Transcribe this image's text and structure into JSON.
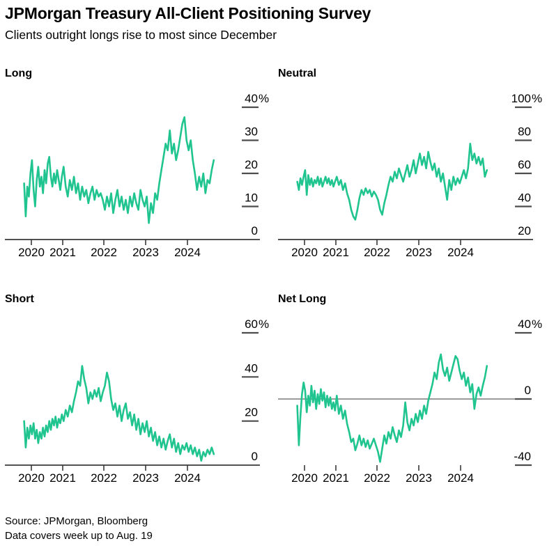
{
  "header": {
    "title": "JPMorgan Treasury All-Client Positioning Survey",
    "subtitle": "Clients outright longs rise to most since December"
  },
  "footer": {
    "source": "Source: JPMorgan, Bloomberg",
    "note": "Data covers week up to Aug. 19"
  },
  "colors": {
    "line": "#1fc48e",
    "tick_dash": "#4d4d4d",
    "axis_line": "#3a3a3a",
    "zero_line": "#7a7a7a",
    "text": "#000000"
  },
  "chart_data": [
    {
      "type": "line",
      "title": "Long",
      "x_start": 2019.77,
      "x_end": 2024.63,
      "xticks": [
        "2020",
        "2021",
        "2022",
        "2023",
        "2024"
      ],
      "ylim": [
        0,
        40
      ],
      "axis": "bottom",
      "grid": "off",
      "legend": "none",
      "yticks": [
        {
          "v": 40,
          "label": "40",
          "suffix": "%",
          "dash": true
        },
        {
          "v": 30,
          "label": "30",
          "suffix": "",
          "dash": true
        },
        {
          "v": 20,
          "label": "20",
          "suffix": "",
          "dash": true
        },
        {
          "v": 10,
          "label": "10",
          "suffix": "",
          "dash": true
        },
        {
          "v": 0,
          "label": "0",
          "suffix": "",
          "dash": false
        }
      ],
      "values": [
        17,
        7,
        16,
        13,
        20,
        24,
        15,
        10,
        18,
        22,
        16,
        19,
        14,
        21,
        17,
        23,
        25,
        19,
        16,
        20,
        17,
        21,
        18,
        15,
        19,
        22,
        16,
        13,
        18,
        15,
        19,
        14,
        17,
        12,
        16,
        13,
        15,
        11,
        14,
        16,
        12,
        15,
        13,
        14,
        12,
        9,
        13,
        10,
        14,
        8,
        12,
        15,
        10,
        13,
        9,
        12,
        8,
        13,
        10,
        14,
        11,
        9,
        15,
        12,
        10,
        13,
        5,
        11,
        8,
        14,
        12,
        17,
        21,
        25,
        29,
        27,
        33,
        26,
        29,
        24,
        27,
        31,
        35,
        37,
        30,
        27,
        30,
        24,
        20,
        15,
        19,
        16,
        20,
        14,
        18,
        17,
        21,
        24
      ]
    },
    {
      "type": "line",
      "title": "Neutral",
      "x_start": 2019.77,
      "x_end": 2024.63,
      "xticks": [
        "2020",
        "2021",
        "2022",
        "2023",
        "2024"
      ],
      "ylim": [
        20,
        100
      ],
      "axis": "bottom",
      "grid": "off",
      "legend": "none",
      "yticks": [
        {
          "v": 100,
          "label": "100",
          "suffix": "%",
          "dash": true
        },
        {
          "v": 80,
          "label": "80",
          "suffix": "",
          "dash": true
        },
        {
          "v": 60,
          "label": "60",
          "suffix": "",
          "dash": true
        },
        {
          "v": 40,
          "label": "40",
          "suffix": "",
          "dash": true
        },
        {
          "v": 20,
          "label": "20",
          "suffix": "",
          "dash": false
        }
      ],
      "values": [
        55,
        50,
        57,
        53,
        58,
        62,
        47,
        59,
        53,
        57,
        52,
        56,
        54,
        58,
        53,
        57,
        52,
        55,
        58,
        54,
        57,
        53,
        56,
        52,
        55,
        58,
        53,
        56,
        50,
        54,
        48,
        44,
        38,
        34,
        32,
        38,
        45,
        50,
        47,
        51,
        48,
        50,
        46,
        49,
        47,
        44,
        38,
        35,
        42,
        47,
        53,
        58,
        55,
        61,
        57,
        63,
        59,
        55,
        60,
        65,
        58,
        62,
        68,
        60,
        66,
        72,
        65,
        70,
        63,
        73,
        67,
        62,
        66,
        58,
        63,
        55,
        60,
        52,
        44,
        56,
        50,
        58,
        53,
        57,
        54,
        58,
        62,
        57,
        63,
        78,
        68,
        72,
        66,
        70,
        65,
        69,
        58,
        62
      ]
    },
    {
      "type": "line",
      "title": "Short",
      "x_start": 2019.77,
      "x_end": 2024.63,
      "xticks": [
        "2020",
        "2021",
        "2022",
        "2023",
        "2024"
      ],
      "ylim": [
        0,
        60
      ],
      "axis": "bottom",
      "grid": "off",
      "legend": "none",
      "yticks": [
        {
          "v": 60,
          "label": "60",
          "suffix": "%",
          "dash": true
        },
        {
          "v": 40,
          "label": "40",
          "suffix": "",
          "dash": true
        },
        {
          "v": 20,
          "label": "20",
          "suffix": "",
          "dash": true
        },
        {
          "v": 0,
          "label": "0",
          "suffix": "",
          "dash": false
        }
      ],
      "values": [
        20,
        8,
        17,
        12,
        18,
        14,
        19,
        12,
        16,
        10,
        15,
        12,
        17,
        13,
        18,
        15,
        20,
        16,
        21,
        18,
        22,
        17,
        21,
        19,
        23,
        20,
        25,
        22,
        27,
        24,
        29,
        33,
        38,
        36,
        45,
        39,
        35,
        28,
        33,
        30,
        34,
        31,
        35,
        29,
        33,
        36,
        42,
        38,
        30,
        25,
        28,
        22,
        27,
        20,
        25,
        28,
        21,
        24,
        18,
        23,
        16,
        21,
        14,
        19,
        15,
        20,
        13,
        17,
        11,
        15,
        9,
        13,
        8,
        12,
        7,
        11,
        14,
        8,
        12,
        6,
        10,
        5,
        9,
        7,
        10,
        6,
        9,
        5,
        8,
        4,
        7,
        2,
        6,
        4,
        7,
        5,
        8,
        5
      ]
    },
    {
      "type": "line",
      "title": "Net Long",
      "x_start": 2019.77,
      "x_end": 2024.63,
      "xticks": [
        "2020",
        "2021",
        "2022",
        "2023",
        "2024"
      ],
      "ylim": [
        -40,
        40
      ],
      "axis": "zero",
      "zero_line_at": 0,
      "grid": "off",
      "legend": "none",
      "yticks": [
        {
          "v": 40,
          "label": "40",
          "suffix": "%",
          "dash": true
        },
        {
          "v": 0,
          "label": "0",
          "suffix": "",
          "dash": true
        },
        {
          "v": -40,
          "label": "-40",
          "suffix": "",
          "dash": true
        }
      ],
      "values": [
        -4,
        -28,
        -10,
        3,
        10,
        5,
        -8,
        2,
        -4,
        8,
        -2,
        5,
        -6,
        3,
        -3,
        6,
        -1,
        4,
        -5,
        2,
        -4,
        1,
        -6,
        -2,
        -7,
        2,
        -9,
        -4,
        -12,
        -7,
        -15,
        -20,
        -26,
        -24,
        -31,
        -27,
        -22,
        -28,
        -24,
        -29,
        -25,
        -30,
        -27,
        -24,
        -28,
        -32,
        -38,
        -30,
        -22,
        -27,
        -20,
        -24,
        -17,
        -22,
        -26,
        -19,
        -23,
        -16,
        -2,
        -14,
        -19,
        -12,
        -16,
        -9,
        -14,
        -7,
        -12,
        -4,
        -9,
        -1,
        4,
        9,
        16,
        12,
        22,
        27,
        18,
        14,
        19,
        11,
        16,
        21,
        26,
        24,
        17,
        12,
        16,
        8,
        13,
        4,
        9,
        -6,
        3,
        7,
        2,
        8,
        13,
        20
      ]
    }
  ]
}
